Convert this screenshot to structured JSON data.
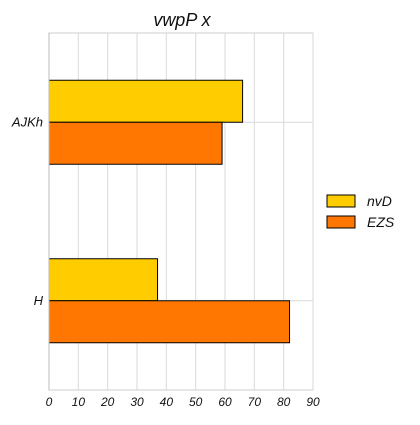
{
  "chart_data": {
    "type": "bar",
    "orientation": "horizontal",
    "title": "vwpP x",
    "xlabel": "",
    "ylabel": "",
    "categories": [
      "AJKh",
      "H"
    ],
    "series": [
      {
        "name": "nvD",
        "values": [
          66,
          37
        ],
        "color": "#ffcc00"
      },
      {
        "name": "EZS",
        "values": [
          59,
          82
        ],
        "color": "#ff7700"
      }
    ],
    "xlim": [
      0,
      90
    ],
    "xticks": [
      "0",
      "10",
      "20",
      "30",
      "40",
      "50",
      "60",
      "70",
      "80",
      "90"
    ],
    "grid": true,
    "legend_position": "right"
  }
}
